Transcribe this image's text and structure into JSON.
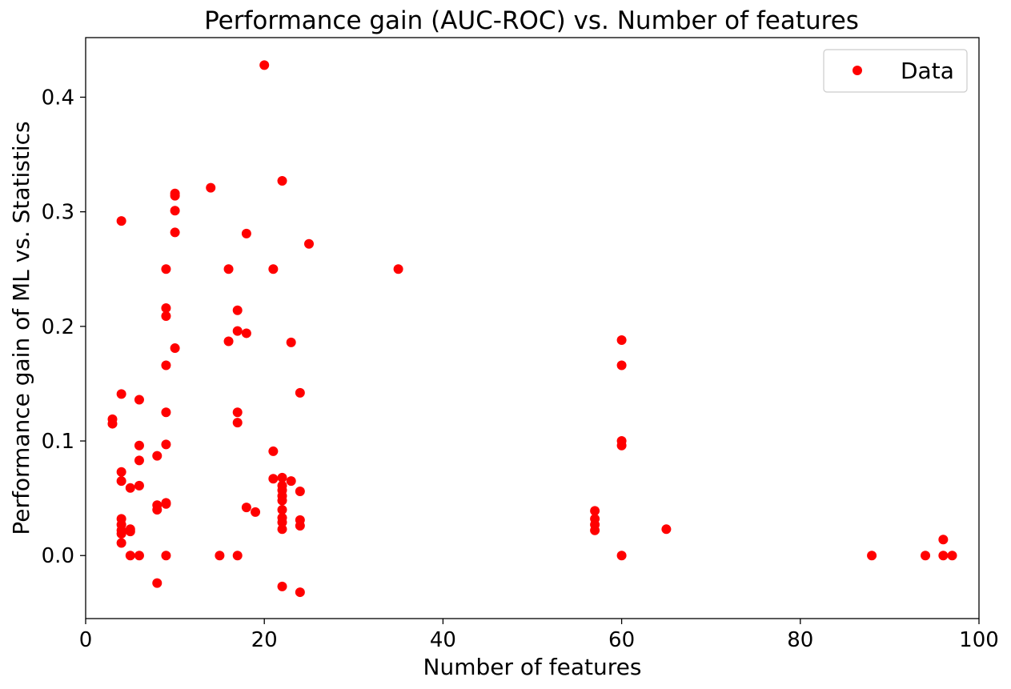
{
  "chart_data": {
    "type": "scatter",
    "title": "Performance gain (AUC-ROC) vs. Number of features",
    "xlabel": "Number of features",
    "ylabel": "Performance gain of ML vs. Statistics",
    "xlim": [
      0,
      100
    ],
    "ylim": [
      -0.055,
      0.452
    ],
    "x_ticks": [
      0,
      20,
      40,
      60,
      80,
      100
    ],
    "x_tick_labels": [
      "0",
      "20",
      "40",
      "60",
      "80",
      "100"
    ],
    "y_ticks": [
      0.0,
      0.1,
      0.2,
      0.3,
      0.4
    ],
    "y_tick_labels": [
      "0.0",
      "0.1",
      "0.2",
      "0.3",
      "0.4"
    ],
    "grid": false,
    "legend": {
      "position": "top-right",
      "entries": [
        "Data"
      ]
    },
    "series": [
      {
        "name": "Data",
        "color": "#ff0000",
        "marker": "circle",
        "points": [
          [
            3,
            0.119
          ],
          [
            3,
            0.115
          ],
          [
            4,
            0.292
          ],
          [
            4,
            0.141
          ],
          [
            4,
            0.073
          ],
          [
            4,
            0.065
          ],
          [
            4,
            0.032
          ],
          [
            4,
            0.027
          ],
          [
            4,
            0.022
          ],
          [
            4,
            0.019
          ],
          [
            4,
            0.011
          ],
          [
            5,
            0.059
          ],
          [
            5,
            0.023
          ],
          [
            5,
            0.021
          ],
          [
            5,
            0.0
          ],
          [
            6,
            0.136
          ],
          [
            6,
            0.096
          ],
          [
            6,
            0.083
          ],
          [
            6,
            0.061
          ],
          [
            6,
            0.0
          ],
          [
            8,
            0.087
          ],
          [
            8,
            0.044
          ],
          [
            8,
            0.04
          ],
          [
            8,
            -0.024
          ],
          [
            9,
            0.25
          ],
          [
            9,
            0.216
          ],
          [
            9,
            0.209
          ],
          [
            9,
            0.166
          ],
          [
            9,
            0.125
          ],
          [
            9,
            0.097
          ],
          [
            9,
            0.046
          ],
          [
            9,
            0.045
          ],
          [
            9,
            0.0
          ],
          [
            10,
            0.316
          ],
          [
            10,
            0.314
          ],
          [
            10,
            0.301
          ],
          [
            10,
            0.282
          ],
          [
            10,
            0.181
          ],
          [
            14,
            0.321
          ],
          [
            15,
            0.0
          ],
          [
            16,
            0.25
          ],
          [
            16,
            0.187
          ],
          [
            17,
            0.214
          ],
          [
            17,
            0.196
          ],
          [
            17,
            0.125
          ],
          [
            17,
            0.116
          ],
          [
            17,
            0.0
          ],
          [
            18,
            0.281
          ],
          [
            18,
            0.194
          ],
          [
            18,
            0.042
          ],
          [
            19,
            0.038
          ],
          [
            20,
            0.428
          ],
          [
            21,
            0.25
          ],
          [
            21,
            0.091
          ],
          [
            21,
            0.067
          ],
          [
            22,
            0.327
          ],
          [
            22,
            0.068
          ],
          [
            22,
            0.061
          ],
          [
            22,
            0.057
          ],
          [
            22,
            0.052
          ],
          [
            22,
            0.048
          ],
          [
            22,
            0.04
          ],
          [
            22,
            0.033
          ],
          [
            22,
            0.029
          ],
          [
            22,
            0.023
          ],
          [
            22,
            -0.027
          ],
          [
            23,
            0.186
          ],
          [
            23,
            0.065
          ],
          [
            24,
            0.142
          ],
          [
            24,
            0.056
          ],
          [
            24,
            0.031
          ],
          [
            24,
            0.026
          ],
          [
            24,
            -0.032
          ],
          [
            25,
            0.272
          ],
          [
            35,
            0.25
          ],
          [
            57,
            0.039
          ],
          [
            57,
            0.032
          ],
          [
            57,
            0.027
          ],
          [
            57,
            0.022
          ],
          [
            60,
            0.188
          ],
          [
            60,
            0.166
          ],
          [
            60,
            0.1
          ],
          [
            60,
            0.096
          ],
          [
            60,
            0.0
          ],
          [
            65,
            0.023
          ],
          [
            88,
            0.0
          ],
          [
            94,
            0.0
          ],
          [
            96,
            0.014
          ],
          [
            96,
            0.0
          ],
          [
            97,
            0.0
          ]
        ]
      }
    ]
  }
}
